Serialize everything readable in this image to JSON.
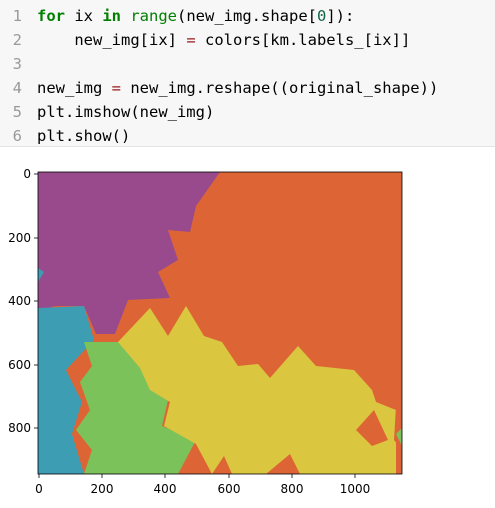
{
  "code_cell": {
    "lines": [
      {
        "num": "1",
        "segments": [
          {
            "text": "for",
            "cls": "kw"
          },
          {
            "text": " ix ",
            "cls": ""
          },
          {
            "text": "in",
            "cls": "kw"
          },
          {
            "text": " ",
            "cls": ""
          },
          {
            "text": "range",
            "cls": "bi"
          },
          {
            "text": "(new_img.shape[",
            "cls": ""
          },
          {
            "text": "0",
            "cls": "num"
          },
          {
            "text": "]):",
            "cls": ""
          }
        ]
      },
      {
        "num": "2",
        "segments": [
          {
            "text": "    new_img[ix] ",
            "cls": ""
          },
          {
            "text": "=",
            "cls": "op"
          },
          {
            "text": " colors[km.labels_[ix]]",
            "cls": ""
          }
        ]
      },
      {
        "num": "3",
        "segments": []
      },
      {
        "num": "4",
        "segments": [
          {
            "text": "new_img ",
            "cls": ""
          },
          {
            "text": "=",
            "cls": "op"
          },
          {
            "text": " new_img.reshape((original_shape))",
            "cls": ""
          }
        ]
      },
      {
        "num": "5",
        "segments": [
          {
            "text": "plt.imshow(new_img)",
            "cls": ""
          }
        ]
      },
      {
        "num": "6",
        "segments": [
          {
            "text": "plt.show()",
            "cls": ""
          }
        ]
      }
    ]
  },
  "output_image": {
    "colors": {
      "purple": "#984a8c",
      "orange": "#dd6535",
      "teal": "#3d9db3",
      "green": "#7cc25a",
      "yellow": "#dbc640"
    },
    "x_tick_labels": [
      "0",
      "200",
      "400",
      "600",
      "800",
      "1000"
    ],
    "y_tick_labels": [
      "0",
      "200",
      "400",
      "600",
      "800"
    ]
  }
}
